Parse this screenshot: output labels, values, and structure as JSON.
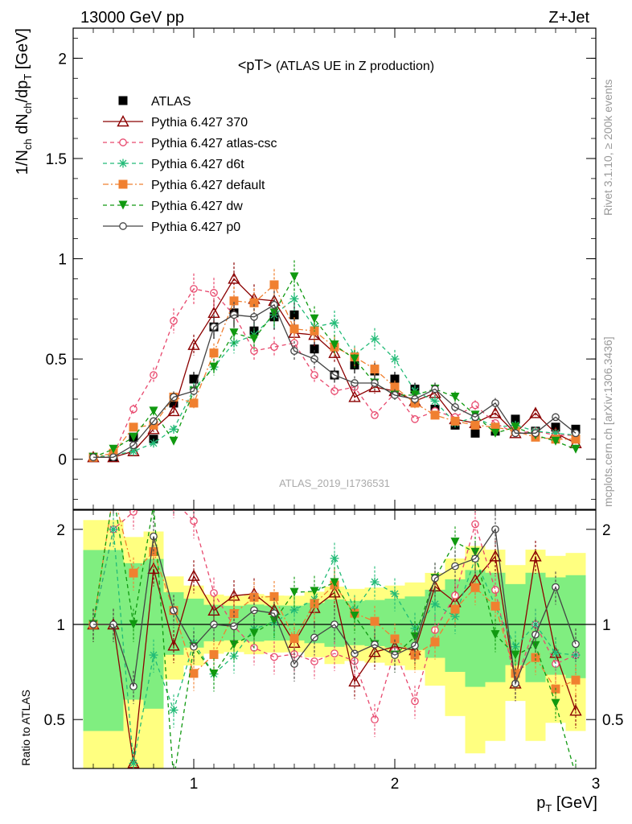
{
  "header": {
    "left": "13000 GeV pp",
    "right": "Z+Jet"
  },
  "side_labels": {
    "rivet": "Rivet 3.1.10, ≥ 200k events",
    "mcplots": "mcplots.cern.ch [arXiv:1306.3436]"
  },
  "chart_data": {
    "type": "line",
    "title": "<pT> (ATLAS UE in Z production)",
    "title_main": "<pT>",
    "title_sub": "(ATLAS UE in Z production)",
    "analysis_id": "ATLAS_2019_I1736531",
    "xlabel": "p_T [GeV]",
    "ylabel_main": "1/N_ch dN_ch/dp_T [GeV]",
    "ylabel_ratio": "Ratio to ATLAS",
    "xlim": [
      0.4,
      3.0
    ],
    "ylim": [
      -0.25,
      2.15
    ],
    "ratio_ylim": [
      0.35,
      2.3
    ],
    "x_ticks": [
      1,
      2,
      3
    ],
    "y_ticks": [
      0,
      0.5,
      1,
      1.5,
      2
    ],
    "ratio_ticks": [
      0.5,
      1,
      2
    ],
    "x": [
      0.5,
      0.6,
      0.7,
      0.8,
      0.9,
      1.0,
      1.1,
      1.2,
      1.3,
      1.4,
      1.5,
      1.6,
      1.7,
      1.8,
      1.9,
      2.0,
      2.1,
      2.2,
      2.3,
      2.4,
      2.5,
      2.6,
      2.7,
      2.8,
      2.9
    ],
    "series": [
      {
        "name": "ATLAS",
        "color": "#000000",
        "marker": "square",
        "values": [
          0.01,
          0.01,
          0.11,
          0.1,
          0.28,
          0.4,
          0.66,
          0.73,
          0.64,
          0.71,
          0.72,
          0.55,
          0.42,
          0.47,
          0.44,
          0.4,
          0.35,
          0.25,
          0.17,
          0.13,
          0.14,
          0.2,
          0.14,
          0.16,
          0.15
        ]
      },
      {
        "name": "Pythia 6.427 370",
        "color": "#8b0000",
        "marker": "triangle",
        "dash": "",
        "values": [
          0.01,
          0.01,
          0.04,
          0.15,
          0.24,
          0.57,
          0.73,
          0.9,
          0.8,
          0.79,
          0.63,
          0.62,
          0.53,
          0.31,
          0.36,
          0.34,
          0.29,
          0.33,
          0.2,
          0.18,
          0.23,
          0.13,
          0.23,
          0.13,
          0.08
        ]
      },
      {
        "name": "Pythia 6.427 atlas-csc",
        "color": "#e8496e",
        "marker": "circle-open",
        "dash": "5,4",
        "values": [
          0.01,
          0.02,
          0.25,
          0.42,
          0.69,
          0.85,
          0.83,
          0.72,
          0.54,
          0.56,
          0.58,
          0.42,
          0.34,
          0.36,
          0.22,
          0.33,
          0.2,
          0.24,
          0.21,
          0.27,
          0.18,
          0.13,
          0.14,
          0.12,
          0.12
        ]
      },
      {
        "name": "Pythia 6.427 d6t",
        "color": "#22bb77",
        "marker": "star",
        "dash": "5,4",
        "values": [
          0.01,
          0.02,
          0.04,
          0.08,
          0.15,
          0.35,
          0.46,
          0.58,
          0.62,
          0.72,
          0.8,
          0.66,
          0.68,
          0.52,
          0.6,
          0.5,
          0.34,
          0.29,
          0.18,
          0.21,
          0.16,
          0.17,
          0.14,
          0.13,
          0.12
        ]
      },
      {
        "name": "Pythia 6.427 default",
        "color": "#f08030",
        "marker": "square",
        "dash": "7,3,2,3",
        "values": [
          0.01,
          0.03,
          0.16,
          0.17,
          0.31,
          0.28,
          0.53,
          0.79,
          0.78,
          0.87,
          0.65,
          0.64,
          0.56,
          0.51,
          0.45,
          0.36,
          0.28,
          0.22,
          0.19,
          0.17,
          0.16,
          0.14,
          0.11,
          0.1,
          0.1
        ]
      },
      {
        "name": "Pythia 6.427 dw",
        "color": "#109910",
        "marker": "triangle-down",
        "dash": "5,4",
        "values": [
          0.01,
          0.05,
          0.11,
          0.24,
          0.09,
          0.34,
          0.46,
          0.63,
          0.6,
          0.73,
          0.91,
          0.7,
          0.57,
          0.5,
          0.38,
          0.32,
          0.32,
          0.35,
          0.31,
          0.22,
          0.13,
          0.16,
          0.12,
          0.09,
          0.05
        ]
      },
      {
        "name": "Pythia 6.427 p0",
        "color": "#444444",
        "marker": "circle-open",
        "dash": "",
        "values": [
          0.01,
          0.01,
          0.07,
          0.19,
          0.31,
          0.34,
          0.66,
          0.72,
          0.71,
          0.77,
          0.54,
          0.5,
          0.42,
          0.38,
          0.38,
          0.32,
          0.3,
          0.35,
          0.26,
          0.21,
          0.28,
          0.13,
          0.13,
          0.21,
          0.13
        ]
      }
    ]
  }
}
